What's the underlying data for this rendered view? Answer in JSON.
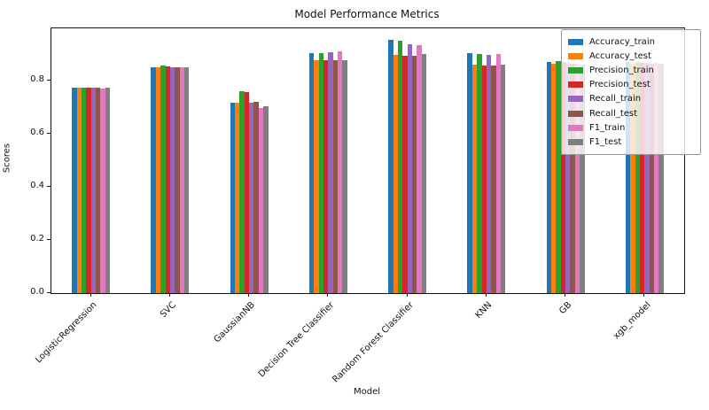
{
  "chart_data": {
    "type": "bar",
    "title": "Model Performance Metrics",
    "xlabel": "Model",
    "ylabel": "Scores",
    "ylim": [
      0,
      0.995
    ],
    "yticks": [
      {
        "value": 0.0,
        "label": "0.0"
      },
      {
        "value": 0.2,
        "label": "0.2"
      },
      {
        "value": 0.4,
        "label": "0.4"
      },
      {
        "value": 0.6,
        "label": "0.6"
      },
      {
        "value": 0.8,
        "label": "0.8"
      }
    ],
    "grid": false,
    "legend_position": "upper right",
    "categories": [
      "LogisticRegression",
      "SVC",
      "GaussianNB",
      "Decision Tree Classifier",
      "Random Forest Classifier",
      "KNN",
      "GB",
      "xgb_model"
    ],
    "series": [
      {
        "name": "Accuracy_train",
        "color": "#1f77b4",
        "values": [
          0.772,
          0.848,
          0.715,
          0.903,
          0.951,
          0.902,
          0.87,
          0.868
        ]
      },
      {
        "name": "Accuracy_test",
        "color": "#ff7f0e",
        "values": [
          0.772,
          0.849,
          0.717,
          0.875,
          0.894,
          0.858,
          0.861,
          0.862
        ]
      },
      {
        "name": "Precision_train",
        "color": "#2ca02c",
        "values": [
          0.773,
          0.854,
          0.76,
          0.903,
          0.949,
          0.899,
          0.873,
          0.868
        ]
      },
      {
        "name": "Precision_test",
        "color": "#d62728",
        "values": [
          0.772,
          0.853,
          0.754,
          0.875,
          0.891,
          0.855,
          0.867,
          0.864
        ]
      },
      {
        "name": "Recall_train",
        "color": "#9467bd",
        "values": [
          0.772,
          0.848,
          0.716,
          0.906,
          0.936,
          0.895,
          0.864,
          0.866
        ]
      },
      {
        "name": "Recall_test",
        "color": "#8c564b",
        "values": [
          0.771,
          0.848,
          0.72,
          0.875,
          0.891,
          0.855,
          0.861,
          0.862
        ]
      },
      {
        "name": "F1_train",
        "color": "#e377c2",
        "values": [
          0.77,
          0.848,
          0.697,
          0.91,
          0.933,
          0.897,
          0.862,
          0.866
        ]
      },
      {
        "name": "F1_test",
        "color": "#7f7f7f",
        "values": [
          0.771,
          0.847,
          0.702,
          0.876,
          0.898,
          0.858,
          0.86,
          0.862
        ]
      }
    ]
  }
}
